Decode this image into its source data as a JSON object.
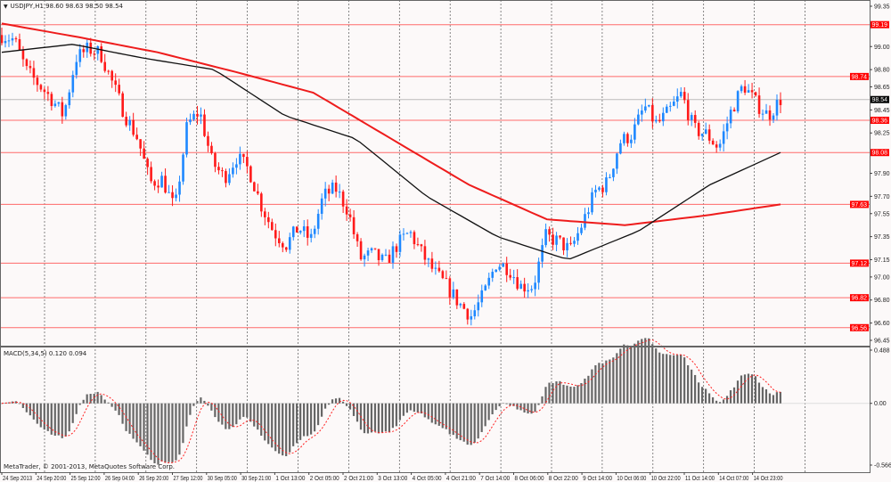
{
  "header": {
    "symbol": "USDJPY,H1",
    "ohlc": "98.60 98.63 98.50 98.54"
  },
  "indicator": {
    "label": "MACD(5,34,5) 0.120 0.094"
  },
  "footer": {
    "copyright": "MetaTrader, © 2001-2013, MetaQuotes Software Corp."
  },
  "colors": {
    "bull": "#1e88ff",
    "bear": "#ff1a1a",
    "ma_slow": "#ee1c1c",
    "ma_fast": "#111111",
    "level": "#ff6a6a",
    "level_tag": "#ff0000",
    "price_tag": "#000000",
    "histogram": "#666666",
    "signal": "#ff2020"
  },
  "chart_data": {
    "type": "candlestick",
    "symbol": "USDJPY,H1",
    "ylim": [
      96.45,
      99.35
    ],
    "y_tick_labels": [
      "99.35",
      "99.00",
      "98.80",
      "98.65",
      "98.45",
      "98.25",
      "97.90",
      "97.70",
      "97.55",
      "97.35",
      "97.15",
      "97.00",
      "96.80",
      "96.60",
      "96.45"
    ],
    "x_tick_labels": [
      "24 Sep 2013",
      "24 Sep 20:00",
      "25 Sep 12:00",
      "26 Sep 04:00",
      "26 Sep 20:00",
      "27 Sep 12:00",
      "30 Sep 05:00",
      "30 Sep 21:00",
      "1 Oct 13:00",
      "2 Oct 05:00",
      "2 Oct 21:00",
      "3 Oct 13:00",
      "4 Oct 05:00",
      "4 Oct 21:00",
      "7 Oct 14:00",
      "8 Oct 06:00",
      "8 Oct 22:00",
      "9 Oct 14:00",
      "10 Oct 06:00",
      "10 Oct 22:00",
      "11 Oct 14:00",
      "14 Oct 07:00",
      "14 Oct 23:00"
    ],
    "close_path": [
      99.1,
      99.06,
      98.79,
      98.67,
      98.55,
      98.4,
      98.9,
      98.98,
      98.94,
      98.67,
      98.4,
      98.2,
      97.82,
      97.85,
      97.58,
      98.32,
      98.44,
      98.0,
      97.86,
      98.04,
      97.93,
      97.62,
      97.39,
      97.28,
      97.43,
      97.32,
      97.7,
      97.77,
      97.58,
      97.16,
      97.2,
      97.12,
      97.28,
      97.39,
      97.2,
      97.04,
      96.92,
      96.77,
      96.66,
      96.85,
      97.12,
      97.08,
      96.92,
      96.92,
      97.35,
      97.31,
      97.23,
      97.47,
      97.74,
      97.82,
      98.17,
      98.24,
      98.48,
      98.32,
      98.44,
      98.59,
      98.28,
      98.24,
      98.12,
      98.44,
      98.67,
      98.51,
      98.4,
      98.54
    ],
    "ma_slow": [
      99.2,
      99.08,
      98.95,
      98.78,
      98.6,
      98.2,
      97.8,
      97.5,
      97.45,
      97.53,
      97.63
    ],
    "ma_fast": [
      98.95,
      99.02,
      98.9,
      98.8,
      98.4,
      98.2,
      97.7,
      97.35,
      97.15,
      97.4,
      97.8,
      98.08
    ],
    "levels": [
      99.19,
      98.74,
      98.36,
      98.08,
      97.63,
      97.12,
      96.82,
      96.56
    ],
    "level_labels": [
      "99.19",
      "98.74",
      "98.36",
      "98.08",
      "97.63",
      "97.12",
      "96.82",
      "96.56"
    ],
    "current_price": 98.54,
    "current_price_label": "98.54",
    "macd": {
      "name": "MACD(5,34,5)",
      "value": 0.12,
      "signal": 0.094,
      "ylim": [
        -0.566,
        0.488
      ],
      "y_tick_labels": [
        "0.488",
        "0.00",
        "-0.566"
      ]
    }
  }
}
